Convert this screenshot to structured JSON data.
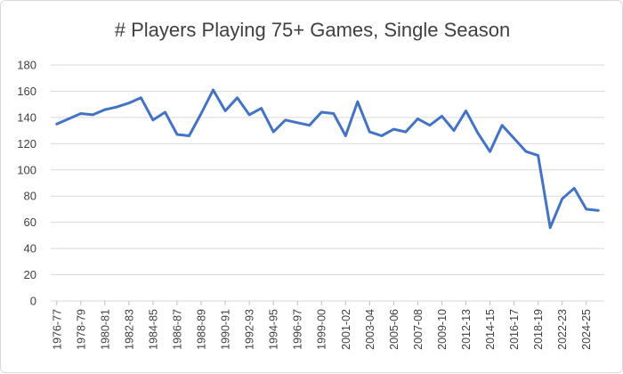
{
  "chart_data": {
    "type": "line",
    "title": "# Players Playing 75+ Games, Single Season",
    "xlabel": "",
    "ylabel": "",
    "ylim": [
      0,
      180
    ],
    "yticks": [
      0,
      20,
      40,
      60,
      80,
      100,
      120,
      140,
      160,
      180
    ],
    "grid": true,
    "legend": "none",
    "line_color": "#4472c4",
    "x": [
      "1976-77",
      "1977-78",
      "1978-79",
      "1979-80",
      "1980-81",
      "1981-82",
      "1982-83",
      "1983-84",
      "1984-85",
      "1985-86",
      "1986-87",
      "1987-88",
      "1988-89",
      "1989-90",
      "1990-91",
      "1991-92",
      "1992-93",
      "1993-94",
      "1994-95",
      "1995-96",
      "1996-97",
      "1997-98",
      "1999-00",
      "2000-01",
      "2001-02",
      "2002-03",
      "2003-04",
      "2004-05",
      "2005-06",
      "2006-07",
      "2007-08",
      "2008-09",
      "2009-10",
      "2010-11",
      "2012-13",
      "2013-14",
      "2014-15",
      "2015-16",
      "2016-17",
      "2017-18",
      "2018-19",
      "2019-20",
      "2022-23",
      "2023-24",
      "2024-25",
      "2025-26"
    ],
    "x_tick_labels": [
      "1976-77",
      "1978-79",
      "1980-81",
      "1982-83",
      "1984-85",
      "1986-87",
      "1988-89",
      "1990-91",
      "1992-93",
      "1994-95",
      "1996-97",
      "1999-00",
      "2001-02",
      "2003-04",
      "2005-06",
      "2007-08",
      "2009-10",
      "2012-13",
      "2014-15",
      "2016-17",
      "2018-19",
      "2022-23",
      "2024-25"
    ],
    "series": [
      {
        "values": [
          135,
          139,
          143,
          142,
          146,
          148,
          151,
          155,
          138,
          144,
          127,
          126,
          143,
          161,
          145,
          155,
          142,
          147,
          129,
          138,
          136,
          134,
          144,
          143,
          126,
          152,
          129,
          126,
          131,
          129,
          139,
          134,
          141,
          130,
          145,
          128,
          114,
          134,
          124,
          114,
          111,
          56,
          78,
          86,
          70,
          69
        ]
      }
    ]
  }
}
